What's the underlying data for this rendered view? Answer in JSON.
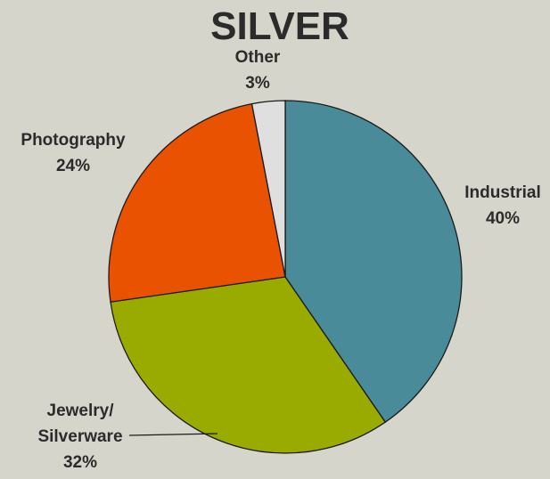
{
  "chart_data": {
    "type": "pie",
    "title": "SILVER",
    "slices": [
      {
        "label_lines": [
          "Industrial"
        ],
        "value": 40,
        "value_label": "40%",
        "color": "#4a8b9a"
      },
      {
        "label_lines": [
          "Jewelry/",
          "Silverware"
        ],
        "value": 32,
        "value_label": "32%",
        "color": "#9aab00"
      },
      {
        "label_lines": [
          "Photography"
        ],
        "value": 24,
        "value_label": "24%",
        "color": "#e85200"
      },
      {
        "label_lines": [
          "Other"
        ],
        "value": 3,
        "value_label": "3%",
        "color": "#dfdfdf"
      }
    ],
    "legend": "none"
  }
}
